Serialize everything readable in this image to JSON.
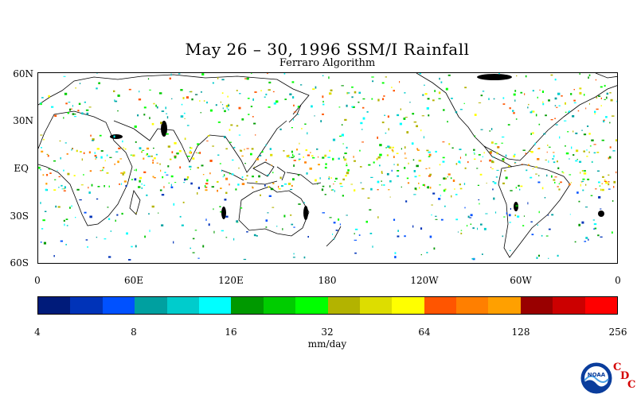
{
  "title": "May 26 – 30, 1996 SSM/I Rainfall",
  "subtitle": "Ferraro Algorithm",
  "map": {
    "lat_labels": [
      "60N",
      "30N",
      "EQ",
      "30S",
      "60S"
    ],
    "lon_labels": [
      "0",
      "60E",
      "120E",
      "180",
      "120W",
      "60W",
      "0"
    ]
  },
  "colorbar": {
    "colors": [
      "#001b7a",
      "#0033b8",
      "#0051ff",
      "#00a0a0",
      "#00cccc",
      "#00ffff",
      "#009900",
      "#00cc00",
      "#00ff00",
      "#b3b300",
      "#dddd00",
      "#ffff00",
      "#ff5500",
      "#ff7f00",
      "#ffa000",
      "#990000",
      "#cc0000",
      "#ff0000"
    ],
    "tick_labels": [
      "4",
      "8",
      "16",
      "32",
      "64",
      "128",
      "256"
    ],
    "units": "mm/day"
  },
  "logo": {
    "noaa_text": "NOAA",
    "cdc_letters": [
      "C",
      "D",
      "C"
    ]
  }
}
